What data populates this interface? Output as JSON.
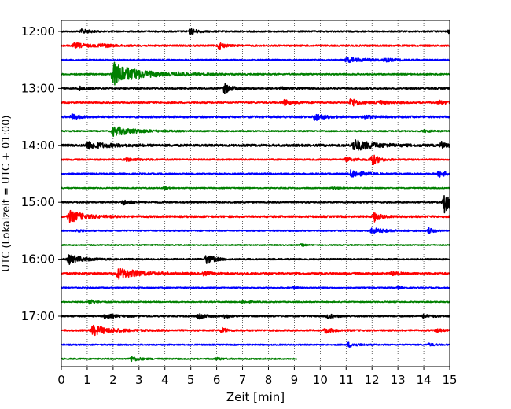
{
  "chart_data": {
    "type": "line",
    "title": "",
    "xlabel": "Zeit  [min]",
    "ylabel": "UTC (Lokalzeit = UTC + 01:00)",
    "xlim": [
      0,
      15
    ],
    "x_ticks": [
      "0",
      "1",
      "2",
      "3",
      "4",
      "5",
      "6",
      "7",
      "8",
      "9",
      "10",
      "11",
      "12",
      "13",
      "14",
      "15"
    ],
    "y_ticks": [
      {
        "label": "12:00",
        "row": 0
      },
      {
        "label": "13:00",
        "row": 4
      },
      {
        "label": "14:00",
        "row": 8
      },
      {
        "label": "15:00",
        "row": 12
      },
      {
        "label": "16:00",
        "row": 16
      },
      {
        "label": "17:00",
        "row": 20
      }
    ],
    "grid": "vertical dotted",
    "row_minutes": 15,
    "color_cycle": [
      "#000000",
      "#ff0000",
      "#0000ff",
      "#008000"
    ],
    "traces": [
      {
        "start": "12:00",
        "end_min": 15,
        "noise": 0.9,
        "events": [
          [
            0.8,
            2.5,
            0.3
          ],
          [
            5.0,
            3.5,
            0.25
          ],
          [
            15.0,
            2.5,
            0.15
          ]
        ]
      },
      {
        "start": "12:15",
        "end_min": 15,
        "noise": 1.0,
        "events": [
          [
            0.5,
            3.0,
            0.5
          ],
          [
            1.5,
            2.0,
            0.4
          ],
          [
            6.1,
            4.0,
            0.2
          ]
        ]
      },
      {
        "start": "12:30",
        "end_min": 15,
        "noise": 0.8,
        "events": [
          [
            11.0,
            2.8,
            0.8
          ],
          [
            12.5,
            1.8,
            0.3
          ]
        ]
      },
      {
        "start": "12:45",
        "end_min": 15,
        "noise": 0.9,
        "events": [
          [
            2.0,
            15.0,
            0.9
          ],
          [
            4.5,
            1.8,
            0.5
          ]
        ]
      },
      {
        "start": "13:00",
        "end_min": 15,
        "noise": 0.9,
        "events": [
          [
            0.7,
            2.5,
            0.2
          ],
          [
            6.3,
            6.0,
            0.3
          ],
          [
            8.5,
            1.5,
            0.3
          ]
        ]
      },
      {
        "start": "13:15",
        "end_min": 15,
        "noise": 0.9,
        "events": [
          [
            8.6,
            3.5,
            0.3
          ],
          [
            11.2,
            6.0,
            0.25
          ],
          [
            12.2,
            3.0,
            0.4
          ],
          [
            14.6,
            3.0,
            0.3
          ]
        ]
      },
      {
        "start": "13:30",
        "end_min": 15,
        "noise": 1.2,
        "events": [
          [
            0.4,
            3.0,
            0.3
          ],
          [
            9.8,
            4.5,
            0.3
          ],
          [
            11.7,
            2.0,
            0.3
          ]
        ]
      },
      {
        "start": "13:45",
        "end_min": 15,
        "noise": 0.8,
        "events": [
          [
            2.0,
            6.0,
            0.8
          ],
          [
            14.0,
            1.5,
            0.3
          ]
        ]
      },
      {
        "start": "14:00",
        "end_min": 15,
        "noise": 1.4,
        "events": [
          [
            1.0,
            4.5,
            0.7
          ],
          [
            11.3,
            7.0,
            0.7
          ],
          [
            14.7,
            4.0,
            0.2
          ]
        ]
      },
      {
        "start": "14:15",
        "end_min": 15,
        "noise": 0.9,
        "events": [
          [
            12.0,
            7.0,
            0.25
          ],
          [
            2.5,
            1.5,
            0.5
          ],
          [
            11.0,
            2.0,
            0.5
          ]
        ]
      },
      {
        "start": "14:30",
        "end_min": 15,
        "noise": 0.9,
        "events": [
          [
            11.2,
            5.0,
            0.4
          ],
          [
            14.6,
            4.0,
            0.3
          ]
        ]
      },
      {
        "start": "14:45",
        "end_min": 15,
        "noise": 0.7,
        "events": [
          [
            4.0,
            2.0,
            0.1
          ],
          [
            10.5,
            1.5,
            0.2
          ]
        ]
      },
      {
        "start": "15:00",
        "end_min": 15,
        "noise": 0.9,
        "events": [
          [
            2.4,
            3.0,
            0.3
          ],
          [
            14.8,
            13.0,
            0.3
          ]
        ]
      },
      {
        "start": "15:15",
        "end_min": 15,
        "noise": 1.2,
        "events": [
          [
            0.3,
            7.0,
            0.6
          ],
          [
            12.1,
            6.0,
            0.2
          ]
        ]
      },
      {
        "start": "15:30",
        "end_min": 15,
        "noise": 0.8,
        "events": [
          [
            0.6,
            2.0,
            0.2
          ],
          [
            12.0,
            3.5,
            0.5
          ],
          [
            14.2,
            3.0,
            0.2
          ]
        ]
      },
      {
        "start": "15:45",
        "end_min": 15,
        "noise": 0.7,
        "events": [
          [
            9.3,
            1.5,
            0.1
          ]
        ]
      },
      {
        "start": "16:00",
        "end_min": 15,
        "noise": 0.9,
        "events": [
          [
            0.3,
            6.0,
            0.5
          ],
          [
            5.6,
            6.0,
            0.3
          ]
        ]
      },
      {
        "start": "16:15",
        "end_min": 15,
        "noise": 1.1,
        "events": [
          [
            2.2,
            6.5,
            0.8
          ],
          [
            5.5,
            2.0,
            0.3
          ],
          [
            12.8,
            3.0,
            0.2
          ]
        ]
      },
      {
        "start": "16:30",
        "end_min": 15,
        "noise": 0.7,
        "events": [
          [
            9.0,
            1.5,
            0.1
          ],
          [
            13.0,
            2.0,
            0.1
          ]
        ]
      },
      {
        "start": "16:45",
        "end_min": 15,
        "noise": 0.7,
        "events": [
          [
            1.1,
            3.0,
            0.2
          ],
          [
            7.0,
            1.2,
            0.3
          ]
        ]
      },
      {
        "start": "17:00",
        "end_min": 15,
        "noise": 0.9,
        "events": [
          [
            1.7,
            2.5,
            0.5
          ],
          [
            5.3,
            3.0,
            0.3
          ],
          [
            6.3,
            2.0,
            0.2
          ],
          [
            10.3,
            2.5,
            0.3
          ],
          [
            14.0,
            2.0,
            0.3
          ]
        ]
      },
      {
        "start": "17:15",
        "end_min": 15,
        "noise": 1.0,
        "events": [
          [
            1.2,
            6.0,
            0.7
          ],
          [
            6.2,
            3.0,
            0.2
          ],
          [
            10.2,
            3.0,
            0.3
          ],
          [
            14.5,
            2.0,
            0.2
          ]
        ]
      },
      {
        "start": "17:30",
        "end_min": 15,
        "noise": 0.8,
        "events": [
          [
            11.1,
            3.0,
            0.3
          ],
          [
            14.2,
            1.5,
            0.2
          ]
        ]
      },
      {
        "start": "17:45",
        "end_min": 9.1,
        "noise": 0.8,
        "events": [
          [
            2.7,
            3.0,
            0.3
          ],
          [
            6.0,
            1.5,
            0.2
          ]
        ]
      }
    ]
  }
}
